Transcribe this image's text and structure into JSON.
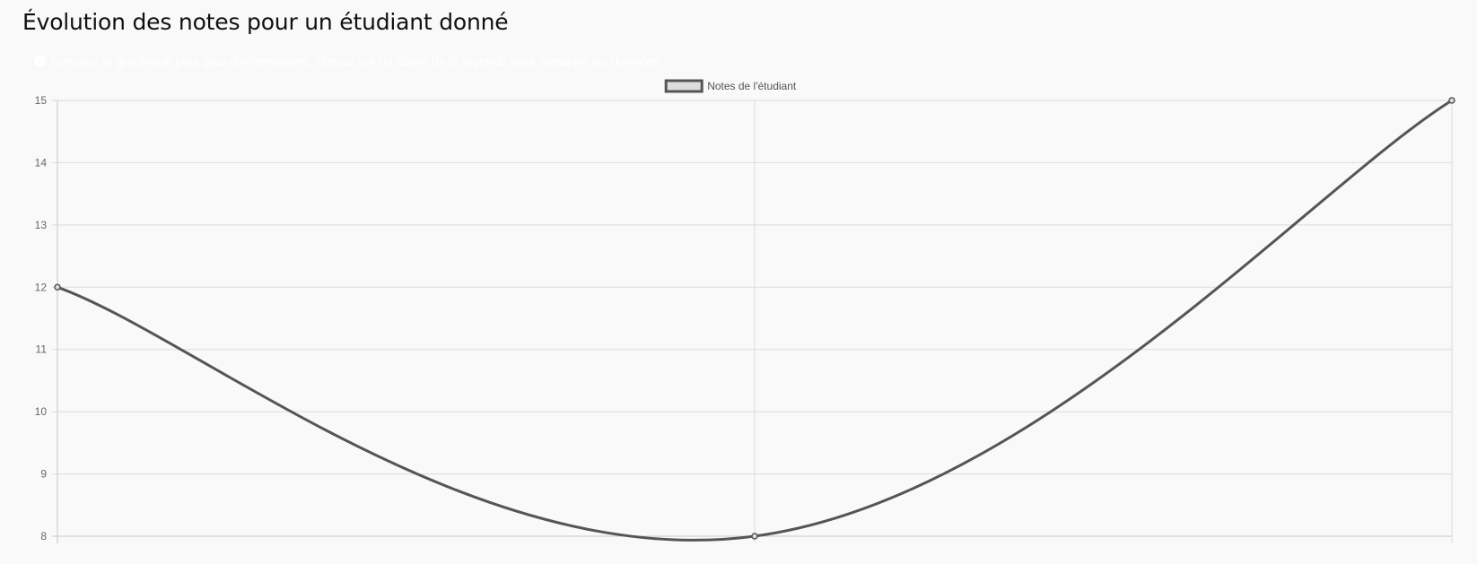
{
  "page": {
    "title": "Évolution des notes pour un étudiant donné",
    "hint": "Survolez le graphique pour plus d'informations, cliquez sur un libellé de la légende pour masquer les données.",
    "hint_icon": "info-circle-icon"
  },
  "chart_data": {
    "type": "line",
    "title": "",
    "xlabel": "",
    "ylabel": "",
    "x": [
      "",
      "",
      ""
    ],
    "series": [
      {
        "name": "Notes de l'étudiant",
        "values": [
          12,
          8,
          15
        ],
        "color": "#555555",
        "fill": "#dddddd"
      }
    ],
    "ylim": [
      8,
      15
    ],
    "yticks": [
      8,
      9,
      10,
      11,
      12,
      13,
      14,
      15
    ],
    "grid": true,
    "legend": "top-center",
    "smooth": true
  }
}
